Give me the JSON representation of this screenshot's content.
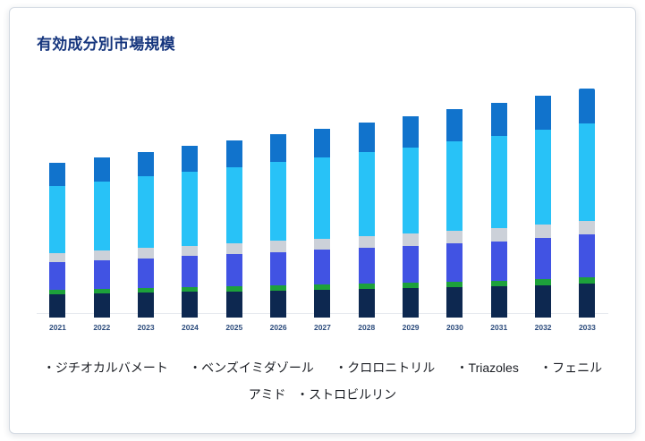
{
  "title": "有効成分別市場規模",
  "legend": {
    "line1": "・ジチオカルバメート      ・ベンズイミダゾール      ・クロロニトリル      ・Triazoles      ・フェニル",
    "line2": "アミド   ・ストロビルリン"
  },
  "chart_data": {
    "type": "bar",
    "stacked": true,
    "title": "有効成分別市場規模",
    "xlabel": "",
    "ylabel": "",
    "ylim": [
      0,
      160
    ],
    "grid": false,
    "legend_position": "bottom",
    "categories": [
      "2021",
      "2022",
      "2023",
      "2024",
      "2025",
      "2026",
      "2027",
      "2028",
      "2029",
      "2030",
      "2031",
      "2032",
      "2033"
    ],
    "series": [
      {
        "name": "ジチオカルバメート",
        "color": "#0d2850",
        "values": [
          15,
          15.5,
          16,
          16.5,
          17,
          17.5,
          18,
          18.5,
          19,
          19.5,
          20,
          21,
          22
        ]
      },
      {
        "name": "ベンズイミダゾール",
        "color": "#1da13b",
        "values": [
          3,
          3.1,
          3.2,
          3.3,
          3.4,
          3.5,
          3.6,
          3.7,
          3.8,
          3.9,
          4,
          4.1,
          4.2
        ]
      },
      {
        "name": "クロロニトリル",
        "color": "#4153e3",
        "values": [
          18,
          18.8,
          19.5,
          20.3,
          21,
          21.8,
          22.5,
          23.3,
          24.1,
          25,
          25.8,
          26.9,
          28
        ]
      },
      {
        "name": "Triazoles",
        "color": "#ccd1d9",
        "values": [
          6,
          6.2,
          6.5,
          6.8,
          7,
          7.3,
          7.5,
          7.8,
          8,
          8.3,
          8.5,
          8.8,
          9
        ]
      },
      {
        "name": "フェニルアミド",
        "color": "#28c2f7",
        "values": [
          44,
          45.5,
          47,
          48.5,
          50,
          51.5,
          53,
          54.8,
          56.5,
          58.5,
          60.5,
          62.2,
          64
        ]
      },
      {
        "name": "ストロビルリン",
        "color": "#1173cc",
        "values": [
          15,
          15.7,
          16.3,
          17,
          17.6,
          18.3,
          19,
          19.7,
          20.4,
          21.2,
          22,
          22.5,
          23
        ]
      }
    ]
  }
}
